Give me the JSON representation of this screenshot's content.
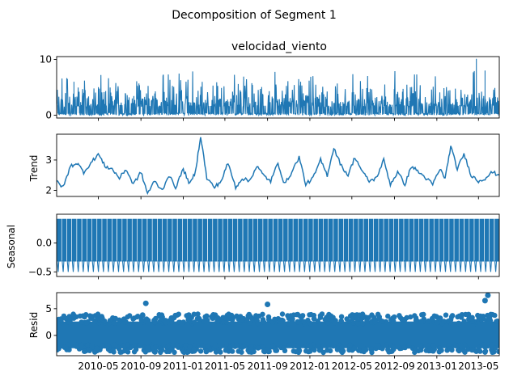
{
  "figure": {
    "title": "Decomposition of Segment 1",
    "series_color": "#1f77b4"
  },
  "chart_data": [
    {
      "type": "line",
      "panel": "observed",
      "title": "velocidad_viento",
      "ylabel": "",
      "x_range": [
        "2010-01-01",
        "2013-06-30"
      ],
      "ylim": [
        -0.5,
        10.5
      ],
      "yticks": [
        0,
        10
      ],
      "xticks": [],
      "grid": false,
      "description_values": {
        "min": 0,
        "max": 10.1,
        "typical_low": 0.5,
        "typical_high": 6.0
      },
      "series": [
        {
          "values_summary": "dense daily-cycle signal, mostly 0–6, peaks near 8 and 10.1 in early 2013"
        }
      ]
    },
    {
      "type": "line",
      "panel": "trend",
      "title": "",
      "ylabel": "Trend",
      "x_range": [
        "2010-01-01",
        "2013-06-30"
      ],
      "ylim": [
        1.8,
        3.85
      ],
      "yticks": [
        2,
        3
      ],
      "xticks": [],
      "grid": false,
      "series": [
        {
          "x": [
            "2010-01-01",
            "2010-01-20",
            "2010-02-10",
            "2010-03-01",
            "2010-03-20",
            "2010-04-10",
            "2010-05-01",
            "2010-05-20",
            "2010-06-10",
            "2010-07-01",
            "2010-07-20",
            "2010-08-10",
            "2010-09-01",
            "2010-09-20",
            "2010-10-10",
            "2010-11-01",
            "2010-11-20",
            "2010-12-10",
            "2011-01-01",
            "2011-01-20",
            "2011-02-05",
            "2011-02-20",
            "2011-03-10",
            "2011-04-01",
            "2011-04-20",
            "2011-05-10",
            "2011-06-01",
            "2011-06-20",
            "2011-07-10",
            "2011-08-01",
            "2011-08-20",
            "2011-09-10",
            "2011-10-01",
            "2011-10-20",
            "2011-11-10",
            "2011-12-01",
            "2011-12-20",
            "2012-01-10",
            "2012-02-01",
            "2012-02-20",
            "2012-03-10",
            "2012-04-01",
            "2012-04-20",
            "2012-05-10",
            "2012-06-01",
            "2012-06-20",
            "2012-07-10",
            "2012-08-01",
            "2012-08-20",
            "2012-09-10",
            "2012-10-01",
            "2012-10-20",
            "2012-11-10",
            "2012-12-01",
            "2012-12-20",
            "2013-01-10",
            "2013-01-25",
            "2013-02-10",
            "2013-03-01",
            "2013-03-20",
            "2013-04-10",
            "2013-05-01",
            "2013-05-20",
            "2013-06-10",
            "2013-06-30"
          ],
          "y": [
            2.3,
            2.1,
            2.8,
            2.9,
            2.6,
            2.9,
            3.2,
            2.8,
            2.7,
            2.4,
            2.7,
            2.2,
            2.6,
            1.9,
            2.3,
            2.0,
            2.5,
            2.1,
            2.7,
            2.2,
            2.6,
            3.8,
            2.4,
            2.1,
            2.3,
            2.9,
            2.1,
            2.4,
            2.3,
            2.8,
            2.5,
            2.3,
            2.9,
            2.2,
            2.6,
            3.1,
            2.2,
            2.4,
            3.0,
            2.5,
            3.4,
            2.8,
            2.5,
            3.1,
            2.6,
            2.3,
            2.4,
            3.0,
            2.2,
            2.6,
            2.2,
            2.8,
            2.6,
            2.4,
            2.2,
            2.7,
            2.4,
            3.45,
            2.7,
            3.2,
            2.5,
            2.3,
            2.4,
            2.6,
            2.5
          ]
        }
      ]
    },
    {
      "type": "line",
      "panel": "seasonal",
      "title": "",
      "ylabel": "Seasonal",
      "x_range": [
        "2010-01-01",
        "2013-06-30"
      ],
      "ylim": [
        -0.58,
        0.5
      ],
      "yticks": [
        -0.5,
        0.0
      ],
      "ytick_labels": [
        "−0.5",
        "0.0"
      ],
      "xticks": [],
      "grid": false,
      "series": [
        {
          "period_cycles": 88,
          "max": 0.42,
          "min": -0.5
        }
      ]
    },
    {
      "type": "scatter",
      "panel": "resid",
      "title": "",
      "ylabel": "Resid",
      "x_range": [
        "2010-01-01",
        "2013-06-30"
      ],
      "ylim": [
        -3.8,
        8.0
      ],
      "yticks": [
        0,
        5
      ],
      "xticks": [
        "2010-05",
        "2010-09",
        "2011-01",
        "2011-05",
        "2011-09",
        "2012-01",
        "2012-05",
        "2012-09",
        "2013-01",
        "2013-05"
      ],
      "grid": false,
      "series": [
        {
          "outliers": [
            {
              "x": "2010-09-15",
              "y": 6.0
            },
            {
              "x": "2011-09-01",
              "y": 5.8
            },
            {
              "x": "2013-05-20",
              "y": 6.5
            },
            {
              "x": "2013-05-28",
              "y": 7.5
            }
          ],
          "band": [
            -3.2,
            4.0
          ]
        }
      ]
    }
  ]
}
